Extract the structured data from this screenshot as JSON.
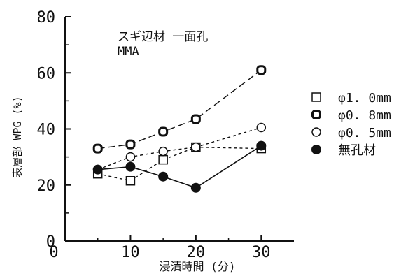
{
  "chart_data": {
    "type": "line",
    "title": "スギ辺材 一面孔",
    "subtitle": "MMA",
    "xlabel": "浸漬時間 (分)",
    "ylabel": "表層部 WPG (%)",
    "xlim": [
      0,
      35
    ],
    "ylim": [
      0,
      80
    ],
    "x_ticks": [
      0,
      10,
      20,
      30
    ],
    "y_ticks": [
      0,
      20,
      40,
      60,
      80
    ],
    "grid": false,
    "legend_position": "right",
    "series": [
      {
        "name": "φ1. 0mm",
        "marker": "square-open",
        "line": "short-dash",
        "points": [
          [
            5,
            24
          ],
          [
            10,
            21.5
          ],
          [
            15,
            29
          ],
          [
            20,
            33.5
          ],
          [
            30,
            33
          ]
        ]
      },
      {
        "name": "φ0. 8mm",
        "marker": "rounded-square-open",
        "line": "long-dash",
        "points": [
          [
            5,
            33
          ],
          [
            10,
            34.5
          ],
          [
            15,
            39
          ],
          [
            20,
            43.5
          ],
          [
            30,
            61
          ]
        ]
      },
      {
        "name": "φ0. 5mm",
        "marker": "circle-open",
        "line": "short-dash",
        "points": [
          [
            5,
            25.5
          ],
          [
            10,
            30
          ],
          [
            15,
            32
          ],
          [
            20,
            33.5
          ],
          [
            30,
            40.5
          ]
        ]
      },
      {
        "name": "無孔材",
        "marker": "circle-filled",
        "line": "solid",
        "points": [
          [
            5,
            25.5
          ],
          [
            10,
            26.5
          ],
          [
            15,
            23
          ],
          [
            20,
            19
          ],
          [
            30,
            34
          ]
        ]
      }
    ]
  }
}
